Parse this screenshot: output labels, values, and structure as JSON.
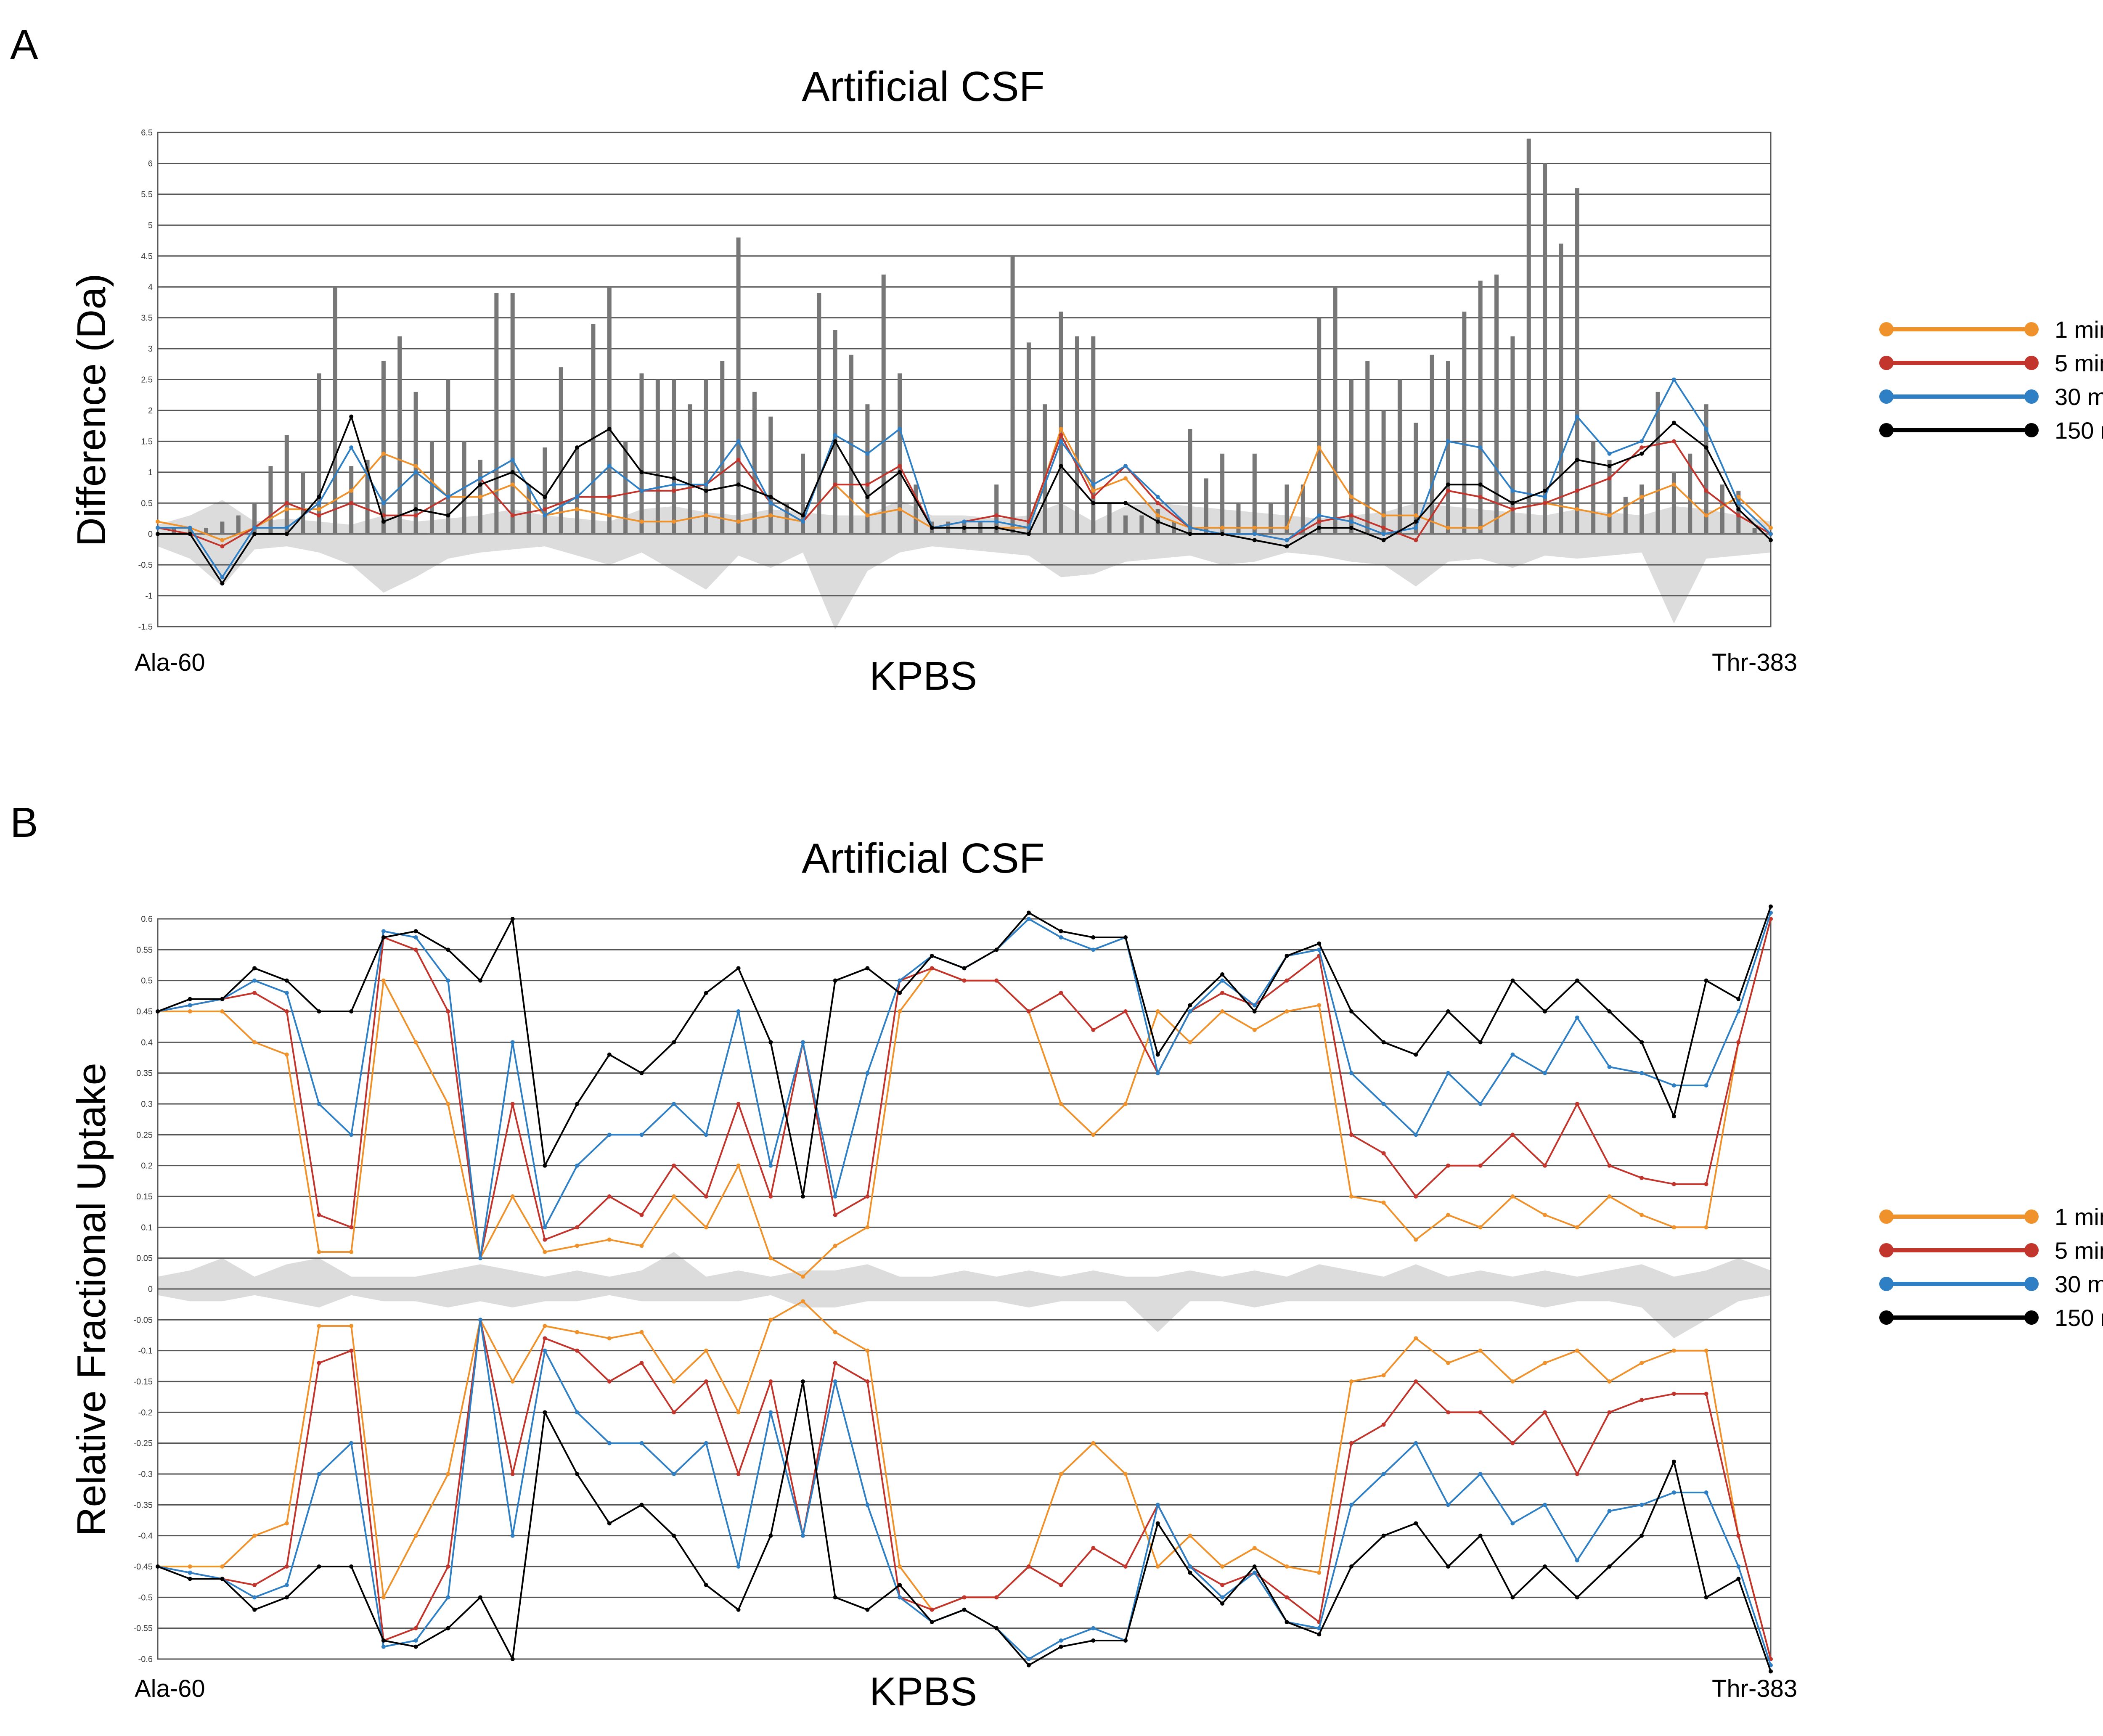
{
  "panels": [
    {
      "letter": "A",
      "title": "Artificial CSF",
      "ylabel": "Difference (Da)",
      "bottom_label": "KPBS",
      "x_start_label": "Ala-60",
      "x_end_label": "Thr-383",
      "legend": [
        {
          "label": "1 min",
          "color": "#f0922c"
        },
        {
          "label": "5 min",
          "color": "#c2352d"
        },
        {
          "label": "30 min",
          "color": "#2f7fc4"
        },
        {
          "label": "150 min",
          "color": "#000000"
        }
      ]
    },
    {
      "letter": "B",
      "title": "Artificial CSF",
      "ylabel": "Relative Fractional Uptake",
      "bottom_label": "KPBS",
      "x_start_label": "Ala-60",
      "x_end_label": "Thr-383",
      "legend": [
        {
          "label": "1 min",
          "color": "#f0922c"
        },
        {
          "label": "5 min",
          "color": "#c2352d"
        },
        {
          "label": "30 min",
          "color": "#2f7fc4"
        },
        {
          "label": "150 min",
          "color": "#000000"
        }
      ]
    }
  ],
  "chart_data": [
    {
      "type": "line",
      "panel": "A",
      "title": "Artificial CSF",
      "ylabel": "Difference (Da)",
      "ylim": [
        -1.5,
        6.5
      ],
      "yticks": [
        "6.5",
        "6",
        "5.5",
        "5",
        "4.5",
        "4",
        "3.5",
        "3",
        "2.5",
        "2",
        "1.5",
        "1",
        "0.5",
        "0",
        "-0.5",
        "-1",
        "-1.5"
      ],
      "xlim": [
        0,
        100
      ],
      "grid": true,
      "legend_position": "right",
      "bars": {
        "x": [
          1,
          2,
          3,
          4,
          5,
          6,
          7,
          8,
          9,
          10,
          11,
          12,
          13,
          14,
          15,
          16,
          17,
          18,
          19,
          20,
          21,
          22,
          23,
          24,
          25,
          26,
          27,
          28,
          29,
          30,
          31,
          32,
          33,
          34,
          35,
          36,
          37,
          38,
          39,
          40,
          41,
          42,
          43,
          44,
          45,
          46,
          47,
          48,
          49,
          50,
          51,
          52,
          53,
          54,
          55,
          56,
          57,
          58,
          59,
          60,
          61,
          62,
          63,
          64,
          65,
          66,
          67,
          68,
          69,
          70,
          71,
          72,
          73,
          74,
          75,
          76,
          77,
          78,
          79,
          80,
          81,
          82,
          83,
          84,
          85,
          86,
          87,
          88,
          89,
          90,
          91,
          92,
          93,
          94,
          95,
          96,
          97,
          98,
          99
        ],
        "values": [
          0.1,
          0.1,
          0.1,
          0.2,
          0.3,
          0.5,
          1.1,
          1.6,
          1.0,
          2.6,
          4.0,
          1.1,
          1.2,
          2.8,
          3.2,
          2.3,
          1.5,
          2.5,
          1.5,
          1.2,
          3.9,
          3.9,
          0.8,
          1.4,
          2.7,
          1.4,
          3.4,
          4.0,
          1.5,
          2.6,
          2.5,
          2.5,
          2.1,
          2.5,
          2.8,
          4.8,
          2.3,
          1.9,
          0.5,
          1.3,
          3.9,
          3.3,
          2.9,
          2.1,
          4.2,
          2.6,
          0.8,
          0.2,
          0.2,
          0.2,
          0.2,
          0.8,
          4.5,
          3.1,
          2.1,
          3.6,
          3.2,
          3.2,
          0.5,
          0.3,
          0.3,
          0.4,
          0.2,
          1.7,
          0.9,
          1.3,
          0.5,
          1.3,
          0.5,
          0.8,
          0.8,
          3.5,
          4.0,
          2.5,
          2.8,
          2.0,
          2.5,
          1.8,
          2.9,
          2.8,
          3.6,
          4.1,
          4.2,
          3.2,
          6.4,
          6.0,
          4.7,
          5.6,
          1.5,
          1.2,
          0.6,
          0.8,
          2.3,
          1.0,
          1.3,
          2.1,
          0.8,
          0.7,
          0.1
        ]
      },
      "protection_band": {
        "x": [
          0,
          2,
          4,
          6,
          8,
          10,
          12,
          14,
          16,
          18,
          20,
          22,
          24,
          26,
          28,
          30,
          32,
          34,
          36,
          38,
          40,
          42,
          44,
          46,
          48,
          50,
          52,
          54,
          56,
          58,
          60,
          62,
          64,
          66,
          68,
          70,
          72,
          74,
          76,
          78,
          80,
          82,
          84,
          86,
          88,
          90,
          92,
          94,
          96,
          98,
          100
        ],
        "upper": [
          0.15,
          0.3,
          0.55,
          0.2,
          0.25,
          0.2,
          0.15,
          0.3,
          0.2,
          0.25,
          0.3,
          0.4,
          0.3,
          0.25,
          0.2,
          0.4,
          0.45,
          0.35,
          0.3,
          0.4,
          0.35,
          0.3,
          0.3,
          0.55,
          0.3,
          0.3,
          0.25,
          0.3,
          0.5,
          0.2,
          0.45,
          0.5,
          0.45,
          0.4,
          0.35,
          0.3,
          0.25,
          0.3,
          0.35,
          0.5,
          0.45,
          0.4,
          0.35,
          0.3,
          0.4,
          0.35,
          0.3,
          0.45,
          0.4,
          0.3,
          0.2
        ],
        "lower": [
          -0.2,
          -0.4,
          -0.85,
          -0.25,
          -0.2,
          -0.3,
          -0.5,
          -0.95,
          -0.7,
          -0.4,
          -0.3,
          -0.25,
          -0.2,
          -0.35,
          -0.5,
          -0.3,
          -0.6,
          -0.9,
          -0.35,
          -0.55,
          -0.3,
          -1.55,
          -0.6,
          -0.3,
          -0.2,
          -0.25,
          -0.3,
          -0.35,
          -0.7,
          -0.65,
          -0.45,
          -0.4,
          -0.35,
          -0.5,
          -0.45,
          -0.3,
          -0.35,
          -0.45,
          -0.5,
          -0.85,
          -0.45,
          -0.4,
          -0.55,
          -0.35,
          -0.4,
          -0.35,
          -0.3,
          -1.45,
          -0.4,
          -0.35,
          -0.3
        ]
      },
      "x": [
        0,
        2,
        4,
        6,
        8,
        10,
        12,
        14,
        16,
        18,
        20,
        22,
        24,
        26,
        28,
        30,
        32,
        34,
        36,
        38,
        40,
        42,
        44,
        46,
        48,
        50,
        52,
        54,
        56,
        58,
        60,
        62,
        64,
        66,
        68,
        70,
        72,
        74,
        76,
        78,
        80,
        82,
        84,
        86,
        88,
        90,
        92,
        94,
        96,
        98,
        100
      ],
      "series": [
        {
          "name": "1 min",
          "color": "#f0922c",
          "values": [
            0.2,
            0.1,
            -0.1,
            0.1,
            0.4,
            0.4,
            0.7,
            1.3,
            1.1,
            0.6,
            0.6,
            0.8,
            0.3,
            0.4,
            0.3,
            0.2,
            0.2,
            0.3,
            0.2,
            0.3,
            0.2,
            0.8,
            0.3,
            0.4,
            0.1,
            0.1,
            0.1,
            0.1,
            1.7,
            0.7,
            0.9,
            0.3,
            0.1,
            0.1,
            0.1,
            0.1,
            1.4,
            0.6,
            0.3,
            0.3,
            0.1,
            0.1,
            0.4,
            0.5,
            0.4,
            0.3,
            0.6,
            0.8,
            0.3,
            0.6,
            0.1
          ]
        },
        {
          "name": "5 min",
          "color": "#c2352d",
          "values": [
            0.1,
            0.0,
            -0.2,
            0.1,
            0.5,
            0.3,
            0.5,
            0.3,
            0.3,
            0.6,
            0.9,
            0.3,
            0.4,
            0.6,
            0.6,
            0.7,
            0.7,
            0.8,
            1.2,
            0.5,
            0.2,
            0.8,
            0.8,
            1.1,
            0.1,
            0.2,
            0.3,
            0.2,
            1.6,
            0.6,
            1.1,
            0.5,
            0.1,
            0.0,
            0.0,
            -0.1,
            0.2,
            0.3,
            0.1,
            -0.1,
            0.7,
            0.6,
            0.4,
            0.5,
            0.7,
            0.9,
            1.4,
            1.5,
            0.7,
            0.3,
            0.0
          ]
        },
        {
          "name": "30 min",
          "color": "#2f7fc4",
          "values": [
            0.1,
            0.1,
            -0.7,
            0.1,
            0.1,
            0.5,
            1.4,
            0.5,
            1.0,
            0.6,
            0.9,
            1.2,
            0.3,
            0.6,
            1.1,
            0.7,
            0.8,
            0.8,
            1.5,
            0.5,
            0.2,
            1.6,
            1.3,
            1.7,
            0.1,
            0.2,
            0.2,
            0.1,
            1.5,
            0.8,
            1.1,
            0.6,
            0.1,
            0.0,
            0.0,
            -0.1,
            0.3,
            0.2,
            0.0,
            0.1,
            1.5,
            1.4,
            0.7,
            0.6,
            1.9,
            1.3,
            1.5,
            2.5,
            1.7,
            0.5,
            0.0
          ]
        },
        {
          "name": "150 min",
          "color": "#000000",
          "values": [
            0.0,
            0.0,
            -0.8,
            0.0,
            0.0,
            0.6,
            1.9,
            0.2,
            0.4,
            0.3,
            0.8,
            1.0,
            0.6,
            1.4,
            1.7,
            1.0,
            0.9,
            0.7,
            0.8,
            0.6,
            0.3,
            1.5,
            0.6,
            1.0,
            0.1,
            0.1,
            0.1,
            0.0,
            1.1,
            0.5,
            0.5,
            0.2,
            0.0,
            0.0,
            -0.1,
            -0.2,
            0.1,
            0.1,
            -0.1,
            0.2,
            0.8,
            0.8,
            0.5,
            0.7,
            1.2,
            1.1,
            1.3,
            1.8,
            1.4,
            0.4,
            -0.1
          ]
        }
      ]
    },
    {
      "type": "line",
      "panel": "B",
      "title": "Artificial CSF",
      "ylabel": "Relative Fractional Uptake",
      "ylim": [
        -0.6,
        0.6
      ],
      "yticks": [
        "0.6",
        "0.55",
        "0.5",
        "0.45",
        "0.4",
        "0.35",
        "0.3",
        "0.25",
        "0.2",
        "0.15",
        "0.1",
        "0.05",
        "0",
        "-0.05",
        "-0.1",
        "-0.15",
        "-0.2",
        "-0.25",
        "-0.3",
        "-0.35",
        "-0.4",
        "-0.45",
        "-0.5",
        "-0.55",
        "-0.6"
      ],
      "xlim": [
        0,
        100
      ],
      "grid": true,
      "legend_position": "right",
      "protection_band": {
        "x": [
          0,
          2,
          4,
          6,
          8,
          10,
          12,
          14,
          16,
          18,
          20,
          22,
          24,
          26,
          28,
          30,
          32,
          34,
          36,
          38,
          40,
          42,
          44,
          46,
          48,
          50,
          52,
          54,
          56,
          58,
          60,
          62,
          64,
          66,
          68,
          70,
          72,
          74,
          76,
          78,
          80,
          82,
          84,
          86,
          88,
          90,
          92,
          94,
          96,
          98,
          100
        ],
        "upper": [
          0.02,
          0.03,
          0.05,
          0.02,
          0.04,
          0.05,
          0.02,
          0.02,
          0.02,
          0.03,
          0.04,
          0.03,
          0.02,
          0.03,
          0.02,
          0.03,
          0.06,
          0.02,
          0.03,
          0.02,
          0.03,
          0.03,
          0.04,
          0.02,
          0.02,
          0.03,
          0.02,
          0.03,
          0.02,
          0.03,
          0.02,
          0.02,
          0.03,
          0.02,
          0.03,
          0.02,
          0.04,
          0.03,
          0.02,
          0.04,
          0.02,
          0.03,
          0.02,
          0.03,
          0.02,
          0.03,
          0.04,
          0.02,
          0.03,
          0.05,
          0.03
        ],
        "lower": [
          -0.01,
          -0.02,
          -0.02,
          -0.01,
          -0.02,
          -0.03,
          -0.01,
          -0.02,
          -0.02,
          -0.03,
          -0.02,
          -0.03,
          -0.02,
          -0.02,
          -0.01,
          -0.02,
          -0.02,
          -0.02,
          -0.02,
          -0.01,
          -0.03,
          -0.03,
          -0.02,
          -0.02,
          -0.02,
          -0.02,
          -0.02,
          -0.03,
          -0.02,
          -0.02,
          -0.02,
          -0.07,
          -0.02,
          -0.02,
          -0.03,
          -0.02,
          -0.02,
          -0.02,
          -0.02,
          -0.02,
          -0.02,
          -0.02,
          -0.02,
          -0.03,
          -0.02,
          -0.02,
          -0.03,
          -0.08,
          -0.05,
          -0.02,
          -0.01
        ]
      },
      "x": [
        0,
        2,
        4,
        6,
        8,
        10,
        12,
        14,
        16,
        18,
        20,
        22,
        24,
        26,
        28,
        30,
        32,
        34,
        36,
        38,
        40,
        42,
        44,
        46,
        48,
        50,
        52,
        54,
        56,
        58,
        60,
        62,
        64,
        66,
        68,
        70,
        72,
        74,
        76,
        78,
        80,
        82,
        84,
        86,
        88,
        90,
        92,
        94,
        96,
        98,
        100
      ],
      "series": [
        {
          "name": "1 min",
          "color": "#f0922c",
          "values": [
            0.45,
            0.45,
            0.45,
            0.4,
            0.38,
            0.06,
            0.06,
            0.5,
            0.4,
            0.3,
            0.05,
            0.15,
            0.06,
            0.07,
            0.08,
            0.07,
            0.15,
            0.1,
            0.2,
            0.05,
            0.02,
            0.07,
            0.1,
            0.45,
            0.52,
            0.5,
            0.5,
            0.45,
            0.3,
            0.25,
            0.3,
            0.45,
            0.4,
            0.45,
            0.42,
            0.45,
            0.46,
            0.15,
            0.14,
            0.08,
            0.12,
            0.1,
            0.15,
            0.12,
            0.1,
            0.15,
            0.12,
            0.1,
            0.1,
            0.4,
            0.6
          ]
        },
        {
          "name": "5 min",
          "color": "#c2352d",
          "values": [
            0.45,
            0.46,
            0.47,
            0.48,
            0.45,
            0.12,
            0.1,
            0.57,
            0.55,
            0.45,
            0.05,
            0.3,
            0.08,
            0.1,
            0.15,
            0.12,
            0.2,
            0.15,
            0.3,
            0.15,
            0.4,
            0.12,
            0.15,
            0.5,
            0.52,
            0.5,
            0.5,
            0.45,
            0.48,
            0.42,
            0.45,
            0.35,
            0.45,
            0.48,
            0.46,
            0.5,
            0.54,
            0.25,
            0.22,
            0.15,
            0.2,
            0.2,
            0.25,
            0.2,
            0.3,
            0.2,
            0.18,
            0.17,
            0.17,
            0.4,
            0.6
          ]
        },
        {
          "name": "30 min",
          "color": "#2f7fc4",
          "values": [
            0.45,
            0.46,
            0.47,
            0.5,
            0.48,
            0.3,
            0.25,
            0.58,
            0.57,
            0.5,
            0.05,
            0.4,
            0.1,
            0.2,
            0.25,
            0.25,
            0.3,
            0.25,
            0.45,
            0.2,
            0.4,
            0.15,
            0.35,
            0.5,
            0.54,
            0.52,
            0.55,
            0.6,
            0.57,
            0.55,
            0.57,
            0.35,
            0.45,
            0.5,
            0.46,
            0.54,
            0.55,
            0.35,
            0.3,
            0.25,
            0.35,
            0.3,
            0.38,
            0.35,
            0.44,
            0.36,
            0.35,
            0.33,
            0.33,
            0.45,
            0.61
          ]
        },
        {
          "name": "150 min",
          "color": "#000000",
          "values": [
            0.45,
            0.47,
            0.47,
            0.52,
            0.5,
            0.45,
            0.45,
            0.57,
            0.58,
            0.55,
            0.5,
            0.6,
            0.2,
            0.3,
            0.38,
            0.35,
            0.4,
            0.48,
            0.52,
            0.4,
            0.15,
            0.5,
            0.52,
            0.48,
            0.54,
            0.52,
            0.55,
            0.61,
            0.58,
            0.57,
            0.57,
            0.38,
            0.46,
            0.51,
            0.45,
            0.54,
            0.56,
            0.45,
            0.4,
            0.38,
            0.45,
            0.4,
            0.5,
            0.45,
            0.5,
            0.45,
            0.4,
            0.28,
            0.5,
            0.47,
            0.62
          ]
        }
      ]
    }
  ]
}
